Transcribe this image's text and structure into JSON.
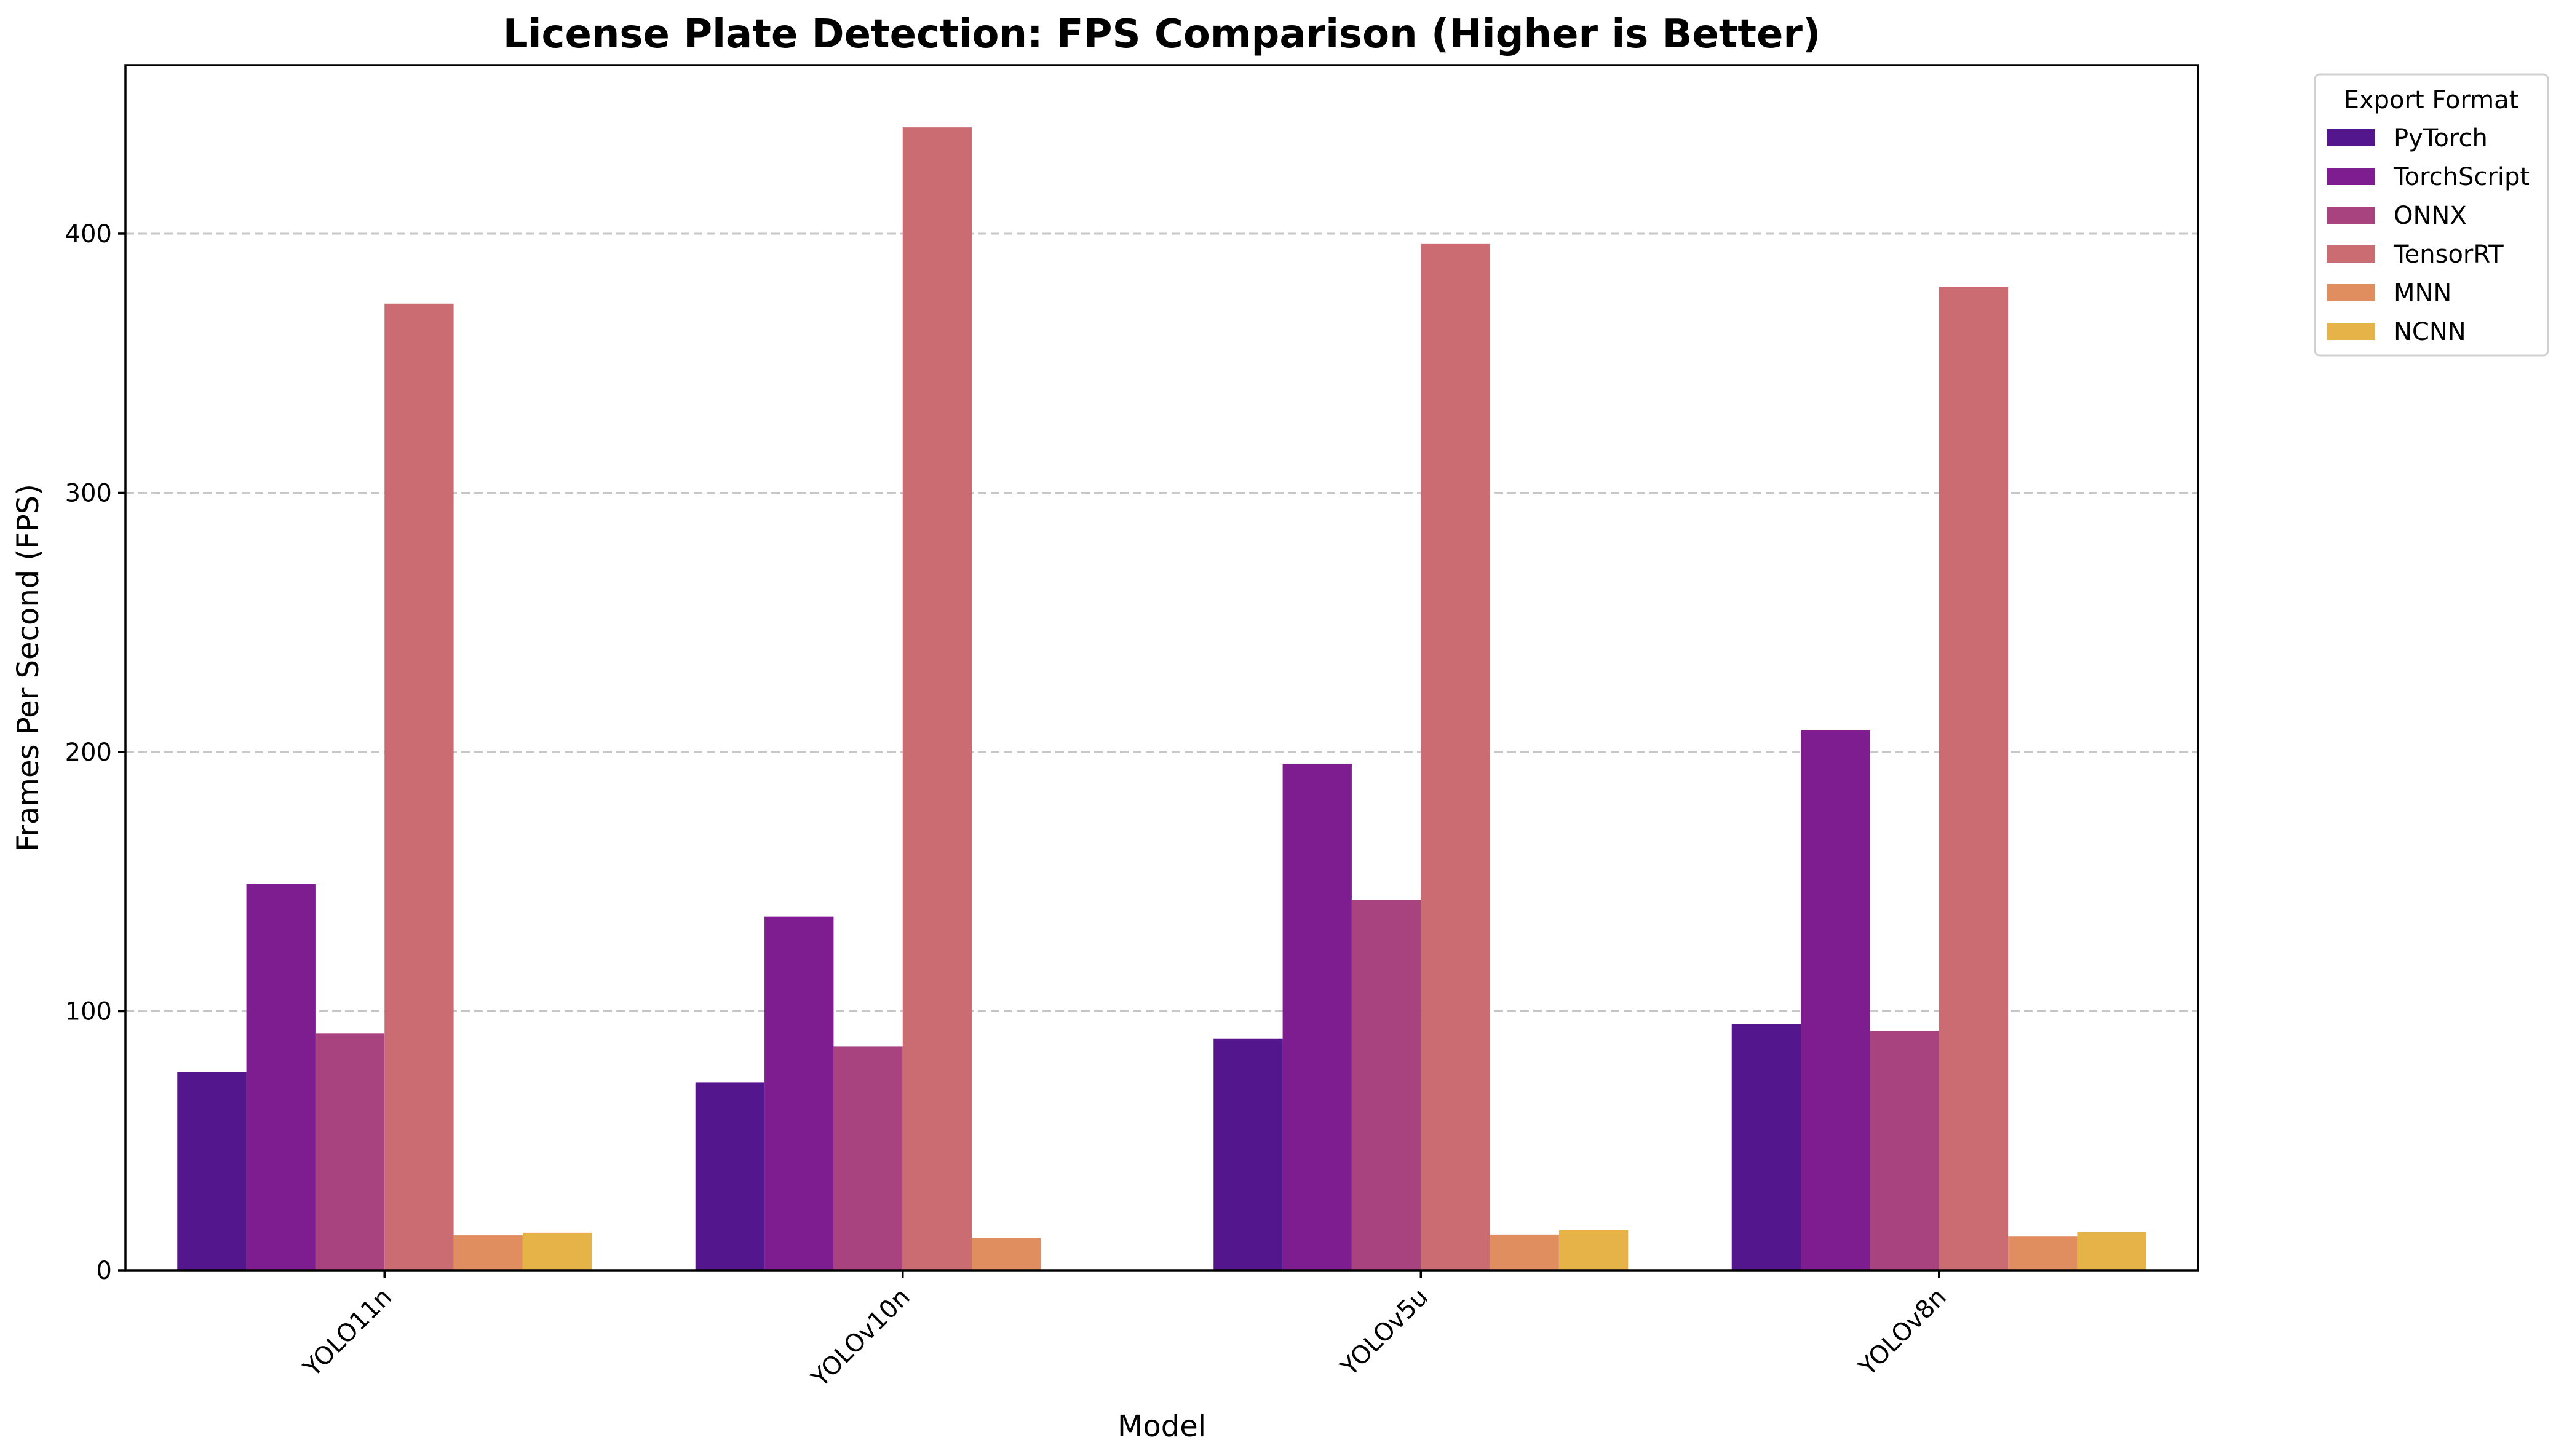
{
  "chart_data": {
    "type": "bar",
    "title": "License Plate Detection: FPS Comparison (Higher is Better)",
    "xlabel": "Model",
    "ylabel": "Frames Per Second (FPS)",
    "categories": [
      "YOLO11n",
      "YOLOv10n",
      "YOLOv5u",
      "YOLOv8n"
    ],
    "ylim": [
      0,
      465
    ],
    "yticks": [
      0,
      100,
      200,
      300,
      400
    ],
    "grid": "horizontal dashed",
    "legend": {
      "title": "Export Format",
      "placement": "outside top-right"
    },
    "series": [
      {
        "name": "PyTorch",
        "color": "#54168c",
        "values": [
          76.5,
          72.5,
          89.5,
          95
        ]
      },
      {
        "name": "TorchScript",
        "color": "#7e1d90",
        "values": [
          149,
          136.5,
          195.5,
          208.5
        ]
      },
      {
        "name": "ONNX",
        "color": "#a84380",
        "values": [
          91.5,
          86.5,
          143,
          92.5
        ]
      },
      {
        "name": "TensorRT",
        "color": "#cb6b72",
        "values": [
          373,
          441,
          396,
          379.5
        ]
      },
      {
        "name": "MNN",
        "color": "#e08d5f",
        "values": [
          13.5,
          12.5,
          13.8,
          13
        ]
      },
      {
        "name": "NCNN",
        "color": "#e5b348",
        "values": [
          14.5,
          0,
          15.5,
          14.8
        ]
      }
    ]
  }
}
